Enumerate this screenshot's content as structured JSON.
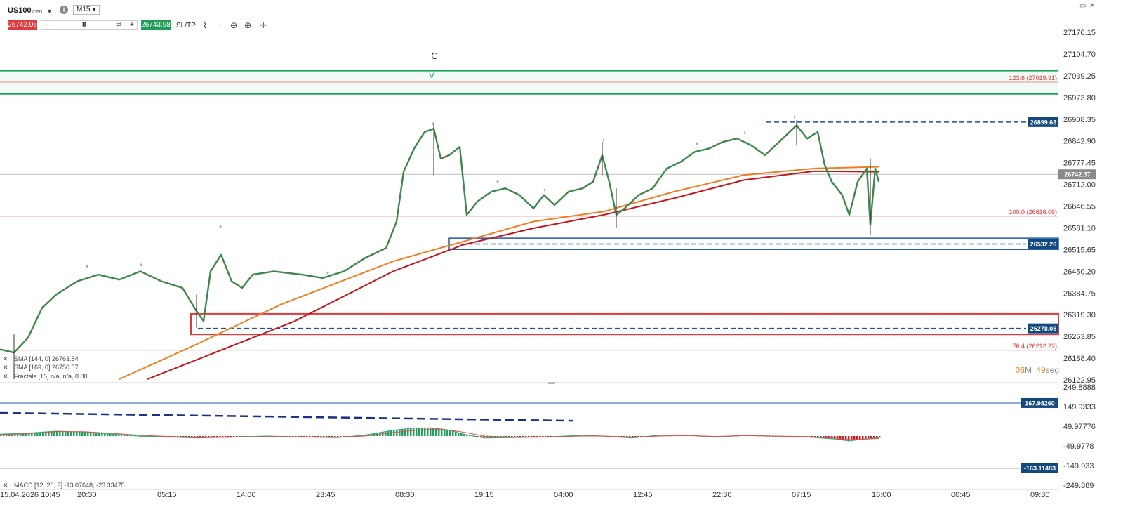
{
  "toolbar": {
    "symbol": "US100",
    "instrument_type": "CFD",
    "timeframe": "M15",
    "sell_price": "26742.06",
    "quantity": "8",
    "buy_price": "26743.98",
    "sltp_label": "SL/TP",
    "minus_label": "–",
    "plus_label": "+",
    "sell_color": "#e0393e",
    "buy_color": "#1f9d55"
  },
  "chart_data": {
    "type": "line",
    "instrument": "US100",
    "price_axis": {
      "ticks": [
        "27170.15",
        "27104.70",
        "27039.25",
        "26973.80",
        "26908.35",
        "26842.90",
        "26777.45",
        "26712.00",
        "26646.55",
        "26581.10",
        "26515.65",
        "26450.20",
        "26384.75",
        "26319.30",
        "26253.85",
        "26188.40",
        "26122.95"
      ],
      "ylim": [
        26122.95,
        27170.15
      ]
    },
    "time_axis": {
      "ticks": [
        "15.04.2026 10:45",
        "20:30",
        "05:15",
        "14:00",
        "23:45",
        "08:30",
        "19:15",
        "04:00",
        "12:45",
        "22:30",
        "07:15",
        "16:00",
        "00:45",
        "09:30"
      ]
    },
    "price_path": [
      [
        0,
        26215
      ],
      [
        20,
        26205
      ],
      [
        40,
        26250
      ],
      [
        60,
        26340
      ],
      [
        80,
        26380
      ],
      [
        110,
        26420
      ],
      [
        140,
        26440
      ],
      [
        170,
        26425
      ],
      [
        200,
        26450
      ],
      [
        230,
        26420
      ],
      [
        260,
        26400
      ],
      [
        280,
        26330
      ],
      [
        290,
        26300
      ],
      [
        300,
        26450
      ],
      [
        315,
        26500
      ],
      [
        330,
        26420
      ],
      [
        345,
        26400
      ],
      [
        360,
        26440
      ],
      [
        390,
        26450
      ],
      [
        430,
        26440
      ],
      [
        460,
        26430
      ],
      [
        490,
        26450
      ],
      [
        520,
        26490
      ],
      [
        550,
        26520
      ],
      [
        565,
        26600
      ],
      [
        575,
        26750
      ],
      [
        590,
        26820
      ],
      [
        605,
        26870
      ],
      [
        618,
        26880
      ],
      [
        628,
        26790
      ],
      [
        640,
        26800
      ],
      [
        655,
        26825
      ],
      [
        665,
        26620
      ],
      [
        680,
        26660
      ],
      [
        700,
        26690
      ],
      [
        720,
        26700
      ],
      [
        740,
        26680
      ],
      [
        760,
        26640
      ],
      [
        775,
        26680
      ],
      [
        790,
        26650
      ],
      [
        810,
        26690
      ],
      [
        830,
        26700
      ],
      [
        845,
        26720
      ],
      [
        858,
        26800
      ],
      [
        868,
        26720
      ],
      [
        878,
        26620
      ],
      [
        890,
        26640
      ],
      [
        910,
        26680
      ],
      [
        930,
        26700
      ],
      [
        950,
        26760
      ],
      [
        970,
        26780
      ],
      [
        990,
        26810
      ],
      [
        1010,
        26820
      ],
      [
        1030,
        26840
      ],
      [
        1050,
        26850
      ],
      [
        1070,
        26830
      ],
      [
        1090,
        26800
      ],
      [
        1110,
        26840
      ],
      [
        1125,
        26870
      ],
      [
        1135,
        26890
      ],
      [
        1150,
        26850
      ],
      [
        1165,
        26870
      ],
      [
        1175,
        26770
      ],
      [
        1185,
        26720
      ],
      [
        1200,
        26680
      ],
      [
        1210,
        26620
      ],
      [
        1222,
        26720
      ],
      [
        1235,
        26760
      ],
      [
        1240,
        26590
      ],
      [
        1247,
        26760
      ],
      [
        1252,
        26720
      ]
    ],
    "price_extents": [
      {
        "x": 618,
        "high": 26895,
        "low": 26740
      },
      {
        "x": 858,
        "high": 26840,
        "low": 26740
      },
      {
        "x": 878,
        "high": 26700,
        "low": 26580
      },
      {
        "x": 1135,
        "high": 26905,
        "low": 26830
      },
      {
        "x": 1240,
        "high": 26790,
        "low": 26560
      },
      {
        "x": 280,
        "high": 26380,
        "low": 26280
      },
      {
        "x": 20,
        "high": 26260,
        "low": 26125
      }
    ],
    "moving_averages": [
      {
        "name": "SMA [144, 0]",
        "value": "26763.84",
        "color": "#f07d1e",
        "path": [
          [
            170,
            26125
          ],
          [
            280,
            26230
          ],
          [
            400,
            26350
          ],
          [
            560,
            26480
          ],
          [
            660,
            26540
          ],
          [
            760,
            26600
          ],
          [
            860,
            26630
          ],
          [
            960,
            26690
          ],
          [
            1060,
            26740
          ],
          [
            1160,
            26760
          ],
          [
            1252,
            26765
          ]
        ]
      },
      {
        "name": "SMA [169, 0]",
        "value": "26750.57",
        "color": "#c4161c",
        "path": [
          [
            210,
            26125
          ],
          [
            300,
            26200
          ],
          [
            420,
            26300
          ],
          [
            560,
            26450
          ],
          [
            660,
            26530
          ],
          [
            760,
            26580
          ],
          [
            860,
            26620
          ],
          [
            960,
            26670
          ],
          [
            1060,
            26725
          ],
          [
            1160,
            26752
          ],
          [
            1252,
            26750
          ]
        ]
      }
    ],
    "fractals_label": "Fractals [15] n/a, n/a, 0.00",
    "horizontal_levels": [
      {
        "price": 27055,
        "color": "#1ba35f",
        "style": "solid-thick"
      },
      {
        "price": 26985,
        "color": "#1ba35f",
        "style": "solid-thick"
      },
      {
        "price": 27019.91,
        "color": "#f08a8a",
        "style": "fib",
        "label": "123.6 (27019.91)"
      },
      {
        "price": 26616.06,
        "color": "#f08a8a",
        "style": "fib",
        "label": "100.0 (26616.06)"
      },
      {
        "price": 26212.22,
        "color": "#f08a8a",
        "style": "fib",
        "label": "76.4 (26212.22)"
      },
      {
        "price": 26742.37,
        "color": "#bdbdbd",
        "style": "current",
        "tag": "26742.37"
      },
      {
        "price": 26899.68,
        "color": "#1e4fa3",
        "style": "dashed",
        "tag": "26899.68"
      },
      {
        "price": 26532.26,
        "color": "#1e4fa3",
        "style": "dashed",
        "tag": "26532.26"
      },
      {
        "price": 26278.08,
        "color": "#1e4fa3",
        "style": "dashed",
        "tag": "26278.08"
      }
    ],
    "zones": [
      {
        "from": 26516,
        "to": 26550,
        "color": "#1e5aa8"
      },
      {
        "from": 26260,
        "to": 26322,
        "color": "#e0393e"
      }
    ],
    "wave_labels": {
      "c": "C",
      "v": "V"
    },
    "countdown": {
      "minutes": "06",
      "seconds": "49",
      "min_unit": "M",
      "sec_unit": "seg"
    },
    "macd": {
      "label": "MACD [12, 26, 9] -13.07648, -23.33475",
      "ticks": [
        "249.8888",
        "149.9333",
        "49.97776",
        "-49.9778",
        "-149.933",
        "-249.889"
      ],
      "ylim": [
        -249.889,
        249.8888
      ],
      "levels": [
        {
          "value": 167.9826,
          "tag": "167.98260"
        },
        {
          "value": -163.11483,
          "tag": "-163.11483"
        }
      ],
      "macd_path": [
        [
          0,
          10
        ],
        [
          40,
          15
        ],
        [
          80,
          25
        ],
        [
          120,
          20
        ],
        [
          160,
          10
        ],
        [
          200,
          0
        ],
        [
          240,
          -5
        ],
        [
          280,
          -10
        ],
        [
          330,
          -5
        ],
        [
          380,
          0
        ],
        [
          430,
          -5
        ],
        [
          480,
          -8
        ],
        [
          520,
          5
        ],
        [
          560,
          30
        ],
        [
          590,
          40
        ],
        [
          615,
          42
        ],
        [
          640,
          30
        ],
        [
          660,
          10
        ],
        [
          690,
          -10
        ],
        [
          730,
          -8
        ],
        [
          780,
          -5
        ],
        [
          830,
          5
        ],
        [
          860,
          0
        ],
        [
          900,
          -10
        ],
        [
          940,
          5
        ],
        [
          980,
          5
        ],
        [
          1020,
          -5
        ],
        [
          1060,
          5
        ],
        [
          1100,
          0
        ],
        [
          1150,
          -5
        ],
        [
          1190,
          -15
        ],
        [
          1210,
          -25
        ],
        [
          1230,
          -15
        ],
        [
          1252,
          -8
        ]
      ],
      "signal_path": [
        [
          0,
          8
        ],
        [
          40,
          12
        ],
        [
          80,
          22
        ],
        [
          120,
          22
        ],
        [
          160,
          14
        ],
        [
          200,
          4
        ],
        [
          240,
          -2
        ],
        [
          280,
          -8
        ],
        [
          330,
          -6
        ],
        [
          380,
          -2
        ],
        [
          430,
          -4
        ],
        [
          480,
          -6
        ],
        [
          520,
          0
        ],
        [
          560,
          18
        ],
        [
          600,
          32
        ],
        [
          630,
          35
        ],
        [
          660,
          20
        ],
        [
          690,
          0
        ],
        [
          730,
          -6
        ],
        [
          780,
          -4
        ],
        [
          830,
          0
        ],
        [
          860,
          0
        ],
        [
          900,
          -6
        ],
        [
          940,
          0
        ],
        [
          980,
          3
        ],
        [
          1020,
          -2
        ],
        [
          1060,
          2
        ],
        [
          1100,
          0
        ],
        [
          1150,
          -3
        ],
        [
          1190,
          -10
        ],
        [
          1210,
          -18
        ],
        [
          1230,
          -16
        ],
        [
          1252,
          -12
        ]
      ],
      "trend_line": [
        [
          0,
          118
        ],
        [
          817,
          78
        ]
      ]
    }
  }
}
